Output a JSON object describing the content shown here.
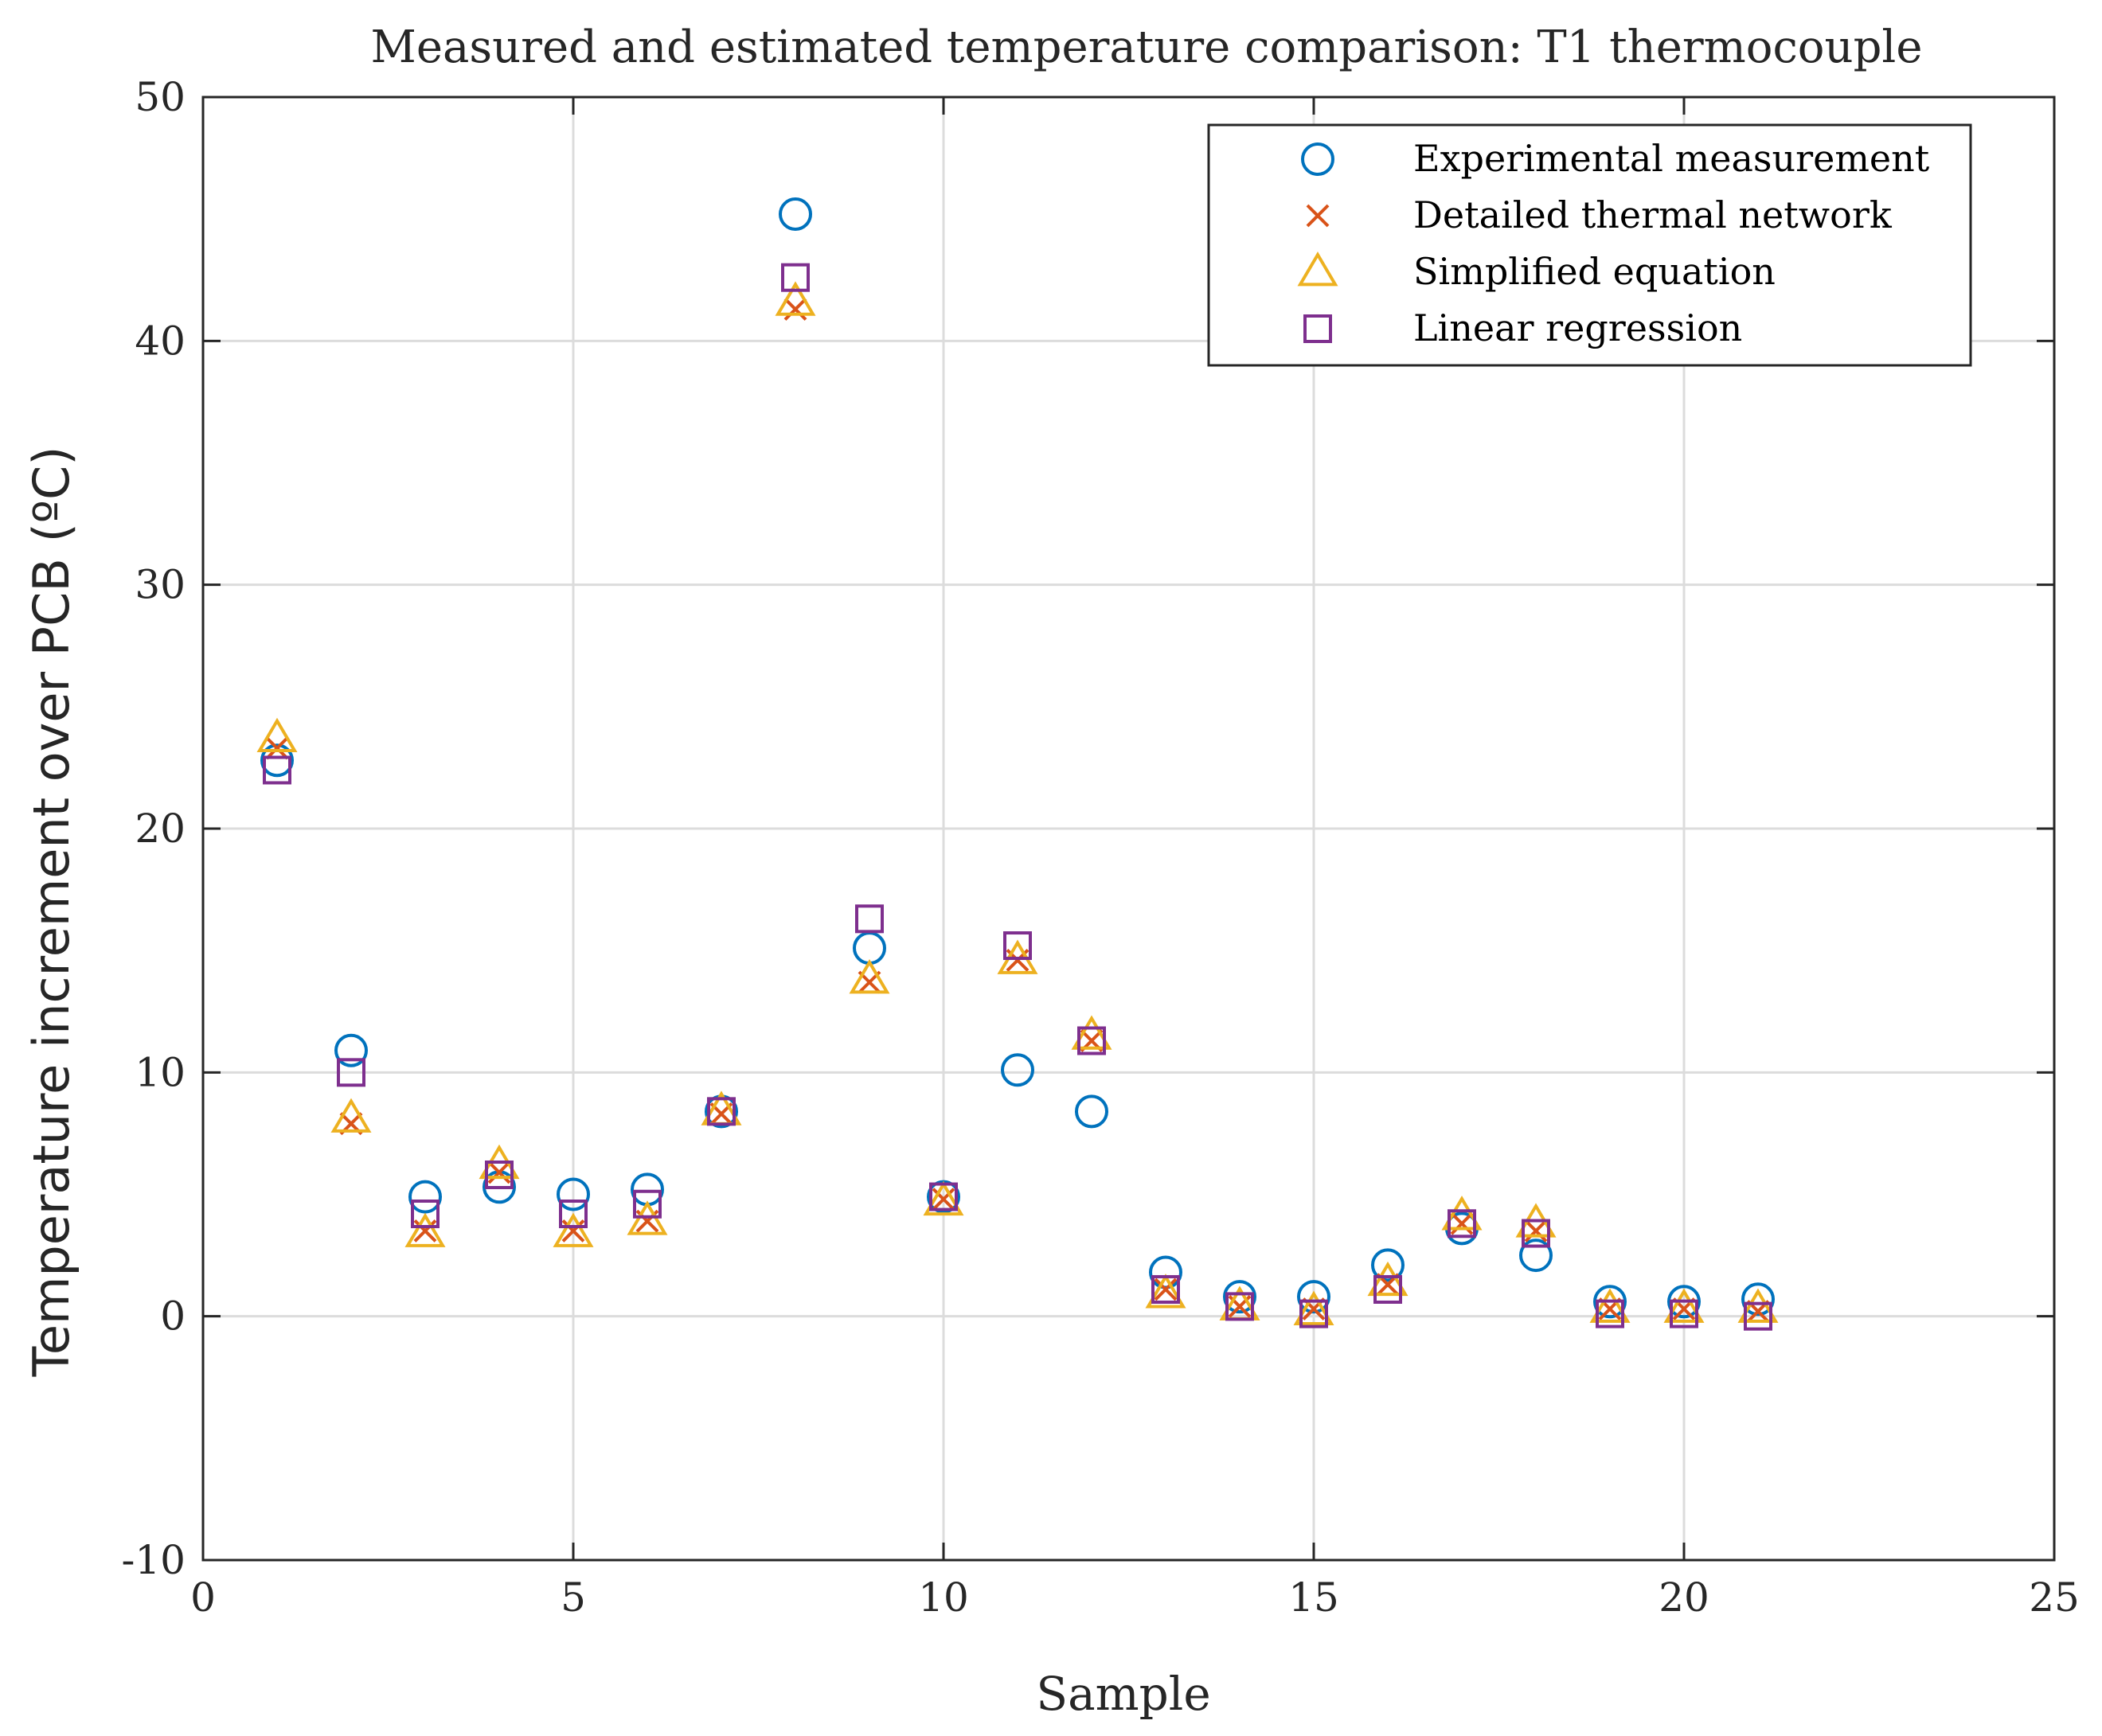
{
  "chart_data": {
    "type": "scatter",
    "title": "Measured and estimated temperature comparison: T1 thermocouple",
    "xlabel": "Sample",
    "ylabel": "Temperature increment over PCB (ºC)",
    "xlim": [
      0,
      25
    ],
    "ylim": [
      -10,
      50
    ],
    "xticks": [
      0,
      5,
      10,
      15,
      20,
      25
    ],
    "yticks": [
      -10,
      0,
      10,
      20,
      30,
      40,
      50
    ],
    "xtick_labels": [
      "0",
      "5",
      "10",
      "15",
      "20",
      "25"
    ],
    "ytick_labels": [
      "-10",
      "0",
      "10",
      "20",
      "30",
      "40",
      "50"
    ],
    "grid": true,
    "legend_position": "top-right",
    "x": [
      1,
      2,
      3,
      4,
      5,
      6,
      7,
      8,
      9,
      10,
      11,
      12,
      13,
      14,
      15,
      16,
      17,
      18,
      19,
      20,
      21
    ],
    "series": [
      {
        "name": "Experimental measurement",
        "marker": "circle",
        "color": "#0072BD",
        "values": [
          22.8,
          10.9,
          4.9,
          5.3,
          5.0,
          5.2,
          8.4,
          45.2,
          15.1,
          4.9,
          10.1,
          8.4,
          1.8,
          0.8,
          0.8,
          2.1,
          3.6,
          2.5,
          0.6,
          0.6,
          0.7
        ]
      },
      {
        "name": "Detailed thermal network",
        "marker": "x",
        "color": "#D95319",
        "values": [
          23.3,
          7.9,
          3.5,
          5.9,
          3.5,
          3.9,
          8.3,
          41.3,
          13.7,
          4.8,
          14.6,
          11.3,
          1.1,
          0.4,
          0.3,
          1.3,
          3.8,
          3.5,
          0.3,
          0.3,
          0.2
        ]
      },
      {
        "name": "Simplified equation",
        "marker": "triangle",
        "color": "#EDB120",
        "values": [
          23.7,
          8.1,
          3.4,
          6.2,
          3.4,
          3.9,
          8.4,
          41.6,
          13.8,
          4.7,
          14.6,
          11.5,
          0.9,
          0.4,
          0.2,
          1.4,
          4.1,
          3.8,
          0.3,
          0.3,
          0.3
        ]
      },
      {
        "name": "Linear regression",
        "marker": "square",
        "color": "#7E2F8E",
        "values": [
          22.4,
          10.0,
          4.2,
          5.8,
          4.2,
          4.6,
          8.4,
          42.6,
          16.3,
          4.9,
          15.2,
          11.3,
          1.1,
          0.4,
          0.1,
          1.1,
          3.8,
          3.4,
          0.1,
          0.1,
          0.0
        ]
      }
    ]
  }
}
